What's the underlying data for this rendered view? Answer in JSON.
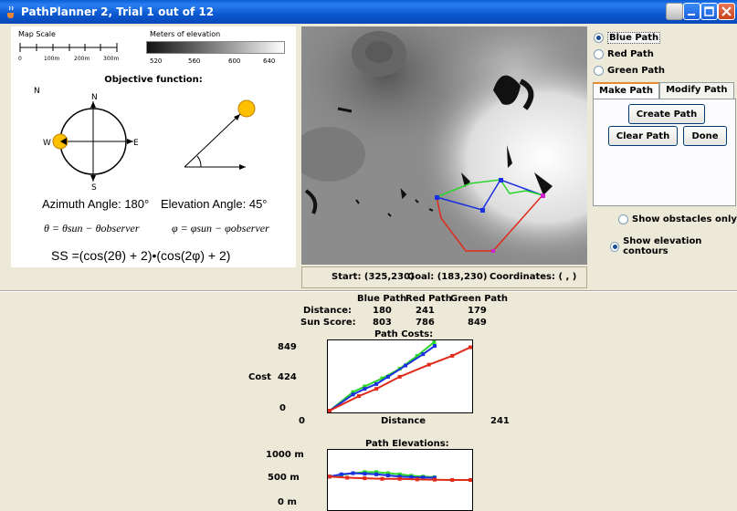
{
  "window": {
    "title": "PathPlanner 2, Trial 1 out of 12"
  },
  "legend": {
    "map_scale_label": "Map Scale",
    "scale_ticks": [
      "0",
      "100m",
      "200m",
      "300m"
    ],
    "elevation_label": "Meters of elevation",
    "elevation_ticks": [
      "520",
      "560",
      "600",
      "640"
    ]
  },
  "objective": {
    "title": "Objective function:",
    "compass_n": "N",
    "compass_s": "S",
    "compass_e": "E",
    "compass_w": "W",
    "azimuth_text": "Azimuth Angle: 180°",
    "elevation_text": "Elevation Angle: 45°",
    "eq_theta": "θ = θsun − θobserver",
    "eq_phi": "φ = φsun − φobserver",
    "eq_ss": "SS =(cos(2θ) + 2)•(cos(2φ) + 2)"
  },
  "status": {
    "start": "Start: (325,230)",
    "goal": "Goal: (183,230)",
    "coords": "Coordinates: ( , )"
  },
  "paths": {
    "options": [
      {
        "label": "Blue Path",
        "selected": true
      },
      {
        "label": "Red Path",
        "selected": false
      },
      {
        "label": "Green Path",
        "selected": false
      }
    ]
  },
  "tabs": [
    {
      "label": "Make Path",
      "active": true
    },
    {
      "label": "Modify Path",
      "active": false
    }
  ],
  "buttons": {
    "create": "Create Path",
    "clear": "Clear Path",
    "done": "Done"
  },
  "display": {
    "obstacles_only": "Show obstacles only",
    "elevation_contours": "Show elevation contours",
    "selected": "elevation_contours"
  },
  "stats": {
    "headers": [
      "Blue Path",
      "Red Path",
      "Green Path"
    ],
    "distance_label": "Distance:",
    "sun_label": "Sun Score:",
    "distance": [
      "180",
      "241",
      "179"
    ],
    "sun_score": [
      "803",
      "786",
      "849"
    ]
  },
  "costs_chart": {
    "title": "Path Costs:",
    "y_axis_label": "Cost",
    "y_ticks": [
      "849",
      "424",
      "0"
    ],
    "x_ticks": [
      "0",
      "241"
    ],
    "x_label": "Distance"
  },
  "elev_chart": {
    "title": "Path Elevations:",
    "y_ticks": [
      "1000 m",
      "500 m",
      "0 m"
    ]
  },
  "colors": {
    "blue": "#1a2fe0",
    "red": "#e02a1a",
    "green": "#2ad62a",
    "magenta": "#d020d0"
  },
  "chart_data": [
    {
      "type": "line",
      "title": "Path Costs:",
      "xlabel": "Distance",
      "ylabel": "Cost",
      "xlim": [
        0,
        241
      ],
      "ylim": [
        0,
        849
      ],
      "series": [
        {
          "name": "Blue Path",
          "x": [
            0,
            40,
            60,
            80,
            100,
            130,
            160,
            180
          ],
          "y": [
            0,
            200,
            270,
            330,
            420,
            560,
            700,
            803
          ]
        },
        {
          "name": "Red Path",
          "x": [
            0,
            50,
            80,
            120,
            170,
            210,
            241
          ],
          "y": [
            0,
            180,
            270,
            420,
            570,
            680,
            786
          ]
        },
        {
          "name": "Green Path",
          "x": [
            0,
            40,
            60,
            90,
            120,
            150,
            179
          ],
          "y": [
            0,
            230,
            300,
            400,
            520,
            680,
            849
          ]
        }
      ]
    },
    {
      "type": "line",
      "title": "Path Elevations:",
      "ylim": [
        0,
        1000
      ],
      "series": [
        {
          "name": "Blue Path",
          "x": [
            0,
            20,
            40,
            60,
            80,
            100,
            120,
            140,
            160,
            180
          ],
          "y": [
            560,
            600,
            620,
            610,
            600,
            580,
            560,
            550,
            545,
            540
          ]
        },
        {
          "name": "Red Path",
          "x": [
            0,
            30,
            60,
            90,
            120,
            150,
            180,
            210,
            241
          ],
          "y": [
            560,
            540,
            530,
            520,
            520,
            510,
            505,
            500,
            500
          ]
        },
        {
          "name": "Green Path",
          "x": [
            0,
            20,
            40,
            60,
            80,
            100,
            120,
            140,
            160,
            179
          ],
          "y": [
            560,
            590,
            620,
            640,
            640,
            620,
            600,
            575,
            560,
            550
          ]
        }
      ]
    }
  ]
}
